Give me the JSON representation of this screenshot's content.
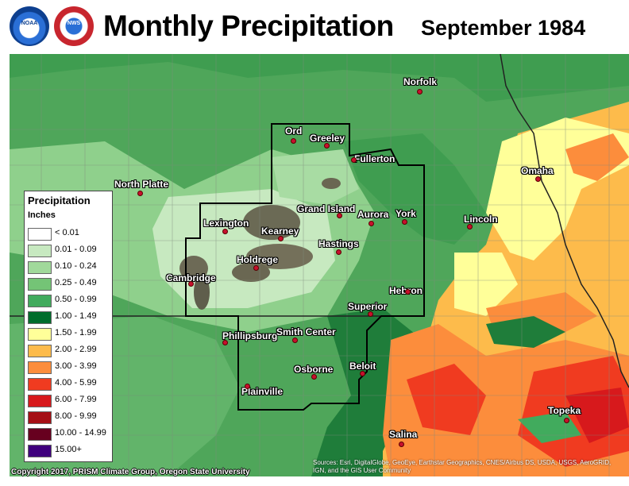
{
  "header": {
    "title": "Monthly Precipitation",
    "date": "September 1984",
    "logos": [
      {
        "name": "noaa-logo",
        "text": "NOAA"
      },
      {
        "name": "nws-logo",
        "text": "NWS"
      }
    ]
  },
  "legend": {
    "title": "Precipitation",
    "units": "Inches",
    "items": [
      {
        "label": "< 0.01",
        "color": "#ffffff"
      },
      {
        "label": "0.01 - 0.09",
        "color": "#c7e9c0"
      },
      {
        "label": "0.10 - 0.24",
        "color": "#a1d99b"
      },
      {
        "label": "0.25 - 0.49",
        "color": "#74c476"
      },
      {
        "label": "0.50 - 0.99",
        "color": "#41ab5d"
      },
      {
        "label": "1.00 - 1.49",
        "color": "#006d2c"
      },
      {
        "label": "1.50 - 1.99",
        "color": "#ffff99"
      },
      {
        "label": "2.00 - 2.99",
        "color": "#fdbb4b"
      },
      {
        "label": "3.00 - 3.99",
        "color": "#fc8d3c"
      },
      {
        "label": "4.00 - 5.99",
        "color": "#f03b20"
      },
      {
        "label": "6.00 - 7.99",
        "color": "#d7191c"
      },
      {
        "label": "8.00 - 9.99",
        "color": "#a50f15"
      },
      {
        "label": "10.00 - 14.99",
        "color": "#67001f"
      },
      {
        "label": "15.00+",
        "color": "#3f007d"
      }
    ]
  },
  "cities": [
    {
      "name": "Norfolk"
    },
    {
      "name": "Ord"
    },
    {
      "name": "Greeley"
    },
    {
      "name": "Fullerton"
    },
    {
      "name": "North Platte"
    },
    {
      "name": "Omaha"
    },
    {
      "name": "Grand Island"
    },
    {
      "name": "Aurora"
    },
    {
      "name": "York"
    },
    {
      "name": "Lincoln"
    },
    {
      "name": "Lexington"
    },
    {
      "name": "Kearney"
    },
    {
      "name": "Hastings"
    },
    {
      "name": "Holdrege"
    },
    {
      "name": "Cambridge"
    },
    {
      "name": "Hebron"
    },
    {
      "name": "Superior"
    },
    {
      "name": "Phillipsburg"
    },
    {
      "name": "Smith Center"
    },
    {
      "name": "Beloit"
    },
    {
      "name": "Osborne"
    },
    {
      "name": "Plainville"
    },
    {
      "name": "Topeka"
    },
    {
      "name": "Salina"
    }
  ],
  "footer": {
    "copyright": "Copyright 2017, PRISM Climate Group, Oregon State University",
    "credits": "Sources: Esri, DigitalGlobe, GeoEye, Earthstar Geographics, CNES/Airbus DS, USDA, USGS, AeroGRID, IGN, and the GIS User Community"
  }
}
